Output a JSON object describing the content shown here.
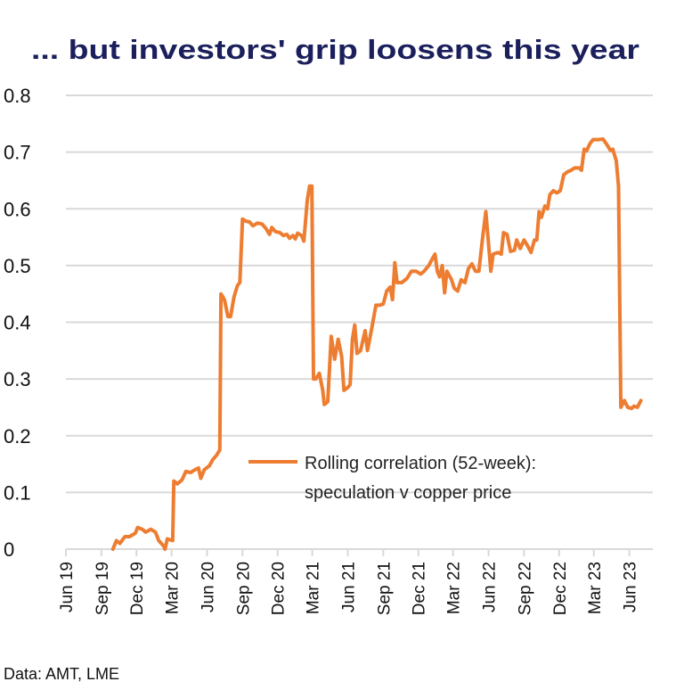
{
  "chart_data": {
    "type": "line",
    "title": "... but investors' grip loosens this year",
    "source": "Data: AMT, LME",
    "xlabel": "",
    "ylabel": "",
    "ylim": [
      0,
      0.8
    ],
    "xlim": [
      "2019-06-01",
      "2023-08-01"
    ],
    "yticks": [
      "0",
      "0.1",
      "0.2",
      "0.3",
      "0.4",
      "0.5",
      "0.6",
      "0.7",
      "0.8"
    ],
    "xticks": [
      {
        "date": "2019-06-01",
        "label": "Jun 19"
      },
      {
        "date": "2019-09-01",
        "label": "Sep 19"
      },
      {
        "date": "2019-12-01",
        "label": "Dec 19"
      },
      {
        "date": "2020-03-01",
        "label": "Mar 20"
      },
      {
        "date": "2020-06-01",
        "label": "Jun 20"
      },
      {
        "date": "2020-09-01",
        "label": "Sep 20"
      },
      {
        "date": "2020-12-01",
        "label": "Dec 20"
      },
      {
        "date": "2021-03-01",
        "label": "Mar 21"
      },
      {
        "date": "2021-06-01",
        "label": "Jun 21"
      },
      {
        "date": "2021-09-01",
        "label": "Sep 21"
      },
      {
        "date": "2021-12-01",
        "label": "Dec 21"
      },
      {
        "date": "2022-03-01",
        "label": "Mar 22"
      },
      {
        "date": "2022-06-01",
        "label": "Jun 22"
      },
      {
        "date": "2022-09-01",
        "label": "Sep 22"
      },
      {
        "date": "2022-12-01",
        "label": "Dec 22"
      },
      {
        "date": "2023-03-01",
        "label": "Mar 23"
      },
      {
        "date": "2023-06-01",
        "label": "Jun 23"
      }
    ],
    "grid": "horizontal",
    "legend_position": "center-right",
    "series": [
      {
        "name": "Rolling correlation (52-week): speculation v copper price",
        "legend_lines": [
          "Rolling correlation (52-week):",
          "speculation v copper price"
        ],
        "color": "#ed7d31",
        "points": [
          [
            "2019-10-01",
            0.0
          ],
          [
            "2019-10-10",
            0.015
          ],
          [
            "2019-10-19",
            0.01
          ],
          [
            "2019-11-01",
            0.022
          ],
          [
            "2019-11-13",
            0.022
          ],
          [
            "2019-11-28",
            0.028
          ],
          [
            "2019-12-04",
            0.038
          ],
          [
            "2019-12-16",
            0.035
          ],
          [
            "2019-12-25",
            0.03
          ],
          [
            "2020-01-07",
            0.035
          ],
          [
            "2020-01-19",
            0.03
          ],
          [
            "2020-01-28",
            0.015
          ],
          [
            "2020-02-10",
            0.005
          ],
          [
            "2020-02-13",
            0.0
          ],
          [
            "2020-02-19",
            0.018
          ],
          [
            "2020-03-04",
            0.015
          ],
          [
            "2020-03-07",
            0.12
          ],
          [
            "2020-03-16",
            0.115
          ],
          [
            "2020-03-28",
            0.122
          ],
          [
            "2020-04-07",
            0.137
          ],
          [
            "2020-04-19",
            0.135
          ],
          [
            "2020-05-01",
            0.14
          ],
          [
            "2020-05-10",
            0.143
          ],
          [
            "2020-05-16",
            0.125
          ],
          [
            "2020-05-25",
            0.14
          ],
          [
            "2020-06-07",
            0.147
          ],
          [
            "2020-06-16",
            0.158
          ],
          [
            "2020-06-25",
            0.165
          ],
          [
            "2020-07-04",
            0.175
          ],
          [
            "2020-07-07",
            0.45
          ],
          [
            "2020-07-16",
            0.44
          ],
          [
            "2020-07-25",
            0.41
          ],
          [
            "2020-08-01",
            0.41
          ],
          [
            "2020-08-10",
            0.445
          ],
          [
            "2020-08-19",
            0.465
          ],
          [
            "2020-08-25",
            0.47
          ],
          [
            "2020-09-01",
            0.582
          ],
          [
            "2020-09-10",
            0.578
          ],
          [
            "2020-09-19",
            0.577
          ],
          [
            "2020-09-28",
            0.57
          ],
          [
            "2020-10-10",
            0.575
          ],
          [
            "2020-10-22",
            0.573
          ],
          [
            "2020-11-01",
            0.565
          ],
          [
            "2020-11-10",
            0.555
          ],
          [
            "2020-11-16",
            0.567
          ],
          [
            "2020-11-25",
            0.56
          ],
          [
            "2020-12-07",
            0.558
          ],
          [
            "2020-12-16",
            0.553
          ],
          [
            "2020-12-25",
            0.555
          ],
          [
            "2021-01-01",
            0.548
          ],
          [
            "2021-01-10",
            0.553
          ],
          [
            "2021-01-16",
            0.547
          ],
          [
            "2021-01-22",
            0.557
          ],
          [
            "2021-02-01",
            0.553
          ],
          [
            "2021-02-07",
            0.543
          ],
          [
            "2021-02-16",
            0.615
          ],
          [
            "2021-02-22",
            0.64
          ],
          [
            "2021-02-28",
            0.64
          ],
          [
            "2021-03-04",
            0.3
          ],
          [
            "2021-03-10",
            0.3
          ],
          [
            "2021-03-19",
            0.31
          ],
          [
            "2021-03-28",
            0.28
          ],
          [
            "2021-04-01",
            0.255
          ],
          [
            "2021-04-10",
            0.26
          ],
          [
            "2021-04-19",
            0.375
          ],
          [
            "2021-04-28",
            0.335
          ],
          [
            "2021-05-07",
            0.37
          ],
          [
            "2021-05-16",
            0.34
          ],
          [
            "2021-05-22",
            0.28
          ],
          [
            "2021-06-01",
            0.285
          ],
          [
            "2021-06-07",
            0.29
          ],
          [
            "2021-06-13",
            0.37
          ],
          [
            "2021-06-19",
            0.395
          ],
          [
            "2021-06-25",
            0.345
          ],
          [
            "2021-07-04",
            0.35
          ],
          [
            "2021-07-16",
            0.385
          ],
          [
            "2021-07-22",
            0.35
          ],
          [
            "2021-08-01",
            0.385
          ],
          [
            "2021-08-13",
            0.43
          ],
          [
            "2021-08-22",
            0.43
          ],
          [
            "2021-09-01",
            0.432
          ],
          [
            "2021-09-10",
            0.455
          ],
          [
            "2021-09-19",
            0.462
          ],
          [
            "2021-09-25",
            0.44
          ],
          [
            "2021-10-01",
            0.505
          ],
          [
            "2021-10-07",
            0.47
          ],
          [
            "2021-10-19",
            0.47
          ],
          [
            "2021-11-01",
            0.477
          ],
          [
            "2021-11-13",
            0.49
          ],
          [
            "2021-11-25",
            0.49
          ],
          [
            "2021-12-07",
            0.485
          ],
          [
            "2021-12-16",
            0.49
          ],
          [
            "2021-12-28",
            0.5
          ],
          [
            "2022-01-07",
            0.513
          ],
          [
            "2022-01-13",
            0.52
          ],
          [
            "2022-01-19",
            0.49
          ],
          [
            "2022-01-25",
            0.48
          ],
          [
            "2022-02-01",
            0.5
          ],
          [
            "2022-02-07",
            0.452
          ],
          [
            "2022-02-13",
            0.49
          ],
          [
            "2022-02-25",
            0.475
          ],
          [
            "2022-03-04",
            0.46
          ],
          [
            "2022-03-13",
            0.455
          ],
          [
            "2022-03-22",
            0.475
          ],
          [
            "2022-04-01",
            0.47
          ],
          [
            "2022-04-10",
            0.495
          ],
          [
            "2022-04-19",
            0.503
          ],
          [
            "2022-04-28",
            0.49
          ],
          [
            "2022-05-07",
            0.49
          ],
          [
            "2022-05-16",
            0.545
          ],
          [
            "2022-05-25",
            0.595
          ],
          [
            "2022-06-07",
            0.49
          ],
          [
            "2022-06-13",
            0.52
          ],
          [
            "2022-06-25",
            0.523
          ],
          [
            "2022-07-04",
            0.52
          ],
          [
            "2022-07-10",
            0.558
          ],
          [
            "2022-07-19",
            0.555
          ],
          [
            "2022-07-28",
            0.525
          ],
          [
            "2022-08-07",
            0.527
          ],
          [
            "2022-08-13",
            0.545
          ],
          [
            "2022-08-22",
            0.53
          ],
          [
            "2022-09-01",
            0.545
          ],
          [
            "2022-09-10",
            0.535
          ],
          [
            "2022-09-19",
            0.523
          ],
          [
            "2022-09-28",
            0.545
          ],
          [
            "2022-10-04",
            0.545
          ],
          [
            "2022-10-10",
            0.595
          ],
          [
            "2022-10-16",
            0.585
          ],
          [
            "2022-10-25",
            0.605
          ],
          [
            "2022-11-01",
            0.6
          ],
          [
            "2022-11-07",
            0.625
          ],
          [
            "2022-11-16",
            0.632
          ],
          [
            "2022-11-25",
            0.628
          ],
          [
            "2022-12-04",
            0.632
          ],
          [
            "2022-12-13",
            0.66
          ],
          [
            "2022-12-22",
            0.665
          ],
          [
            "2023-01-01",
            0.668
          ],
          [
            "2023-01-10",
            0.672
          ],
          [
            "2023-01-22",
            0.672
          ],
          [
            "2023-01-28",
            0.668
          ],
          [
            "2023-02-04",
            0.705
          ],
          [
            "2023-02-10",
            0.702
          ],
          [
            "2023-02-19",
            0.715
          ],
          [
            "2023-02-27",
            0.722
          ],
          [
            "2023-03-13",
            0.722
          ],
          [
            "2023-03-25",
            0.723
          ],
          [
            "2023-04-04",
            0.713
          ],
          [
            "2023-04-13",
            0.703
          ],
          [
            "2023-04-19",
            0.705
          ],
          [
            "2023-04-28",
            0.685
          ],
          [
            "2023-05-04",
            0.64
          ],
          [
            "2023-05-10",
            0.25
          ],
          [
            "2023-05-19",
            0.262
          ],
          [
            "2023-05-28",
            0.25
          ],
          [
            "2023-06-07",
            0.248
          ],
          [
            "2023-06-13",
            0.252
          ],
          [
            "2023-06-22",
            0.25
          ],
          [
            "2023-07-01",
            0.262
          ]
        ]
      }
    ]
  },
  "colors": {
    "title": "#1b1f5c",
    "grid": "#d9d9d9",
    "line": "#ed7d31"
  }
}
